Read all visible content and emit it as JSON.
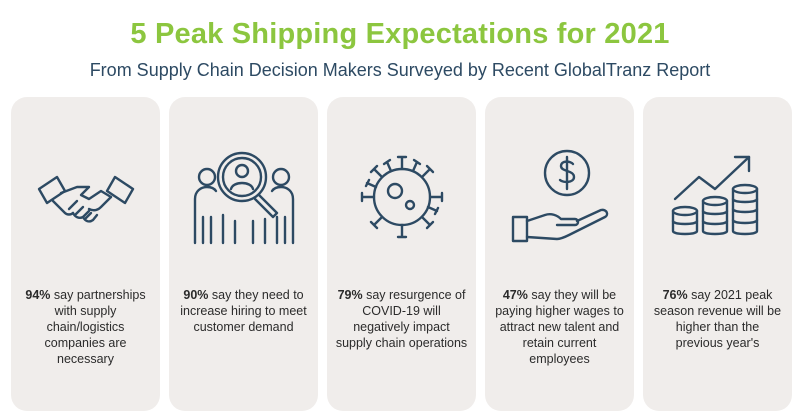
{
  "title": "5 Peak Shipping Expectations for 2021",
  "subtitle": "From Supply Chain Decision Makers Surveyed by Recent GlobalTranz Report",
  "colors": {
    "title": "#8cc63f",
    "subtitle": "#2d4a63",
    "card_bg": "#f0edeb",
    "icon_stroke": "#2d4a63"
  },
  "cards": [
    {
      "icon": "handshake-icon",
      "stat": "94%",
      "text": "say partnerships with supply chain/logistics companies are necessary"
    },
    {
      "icon": "hiring-search-icon",
      "stat": "90%",
      "text": "say they need to increase hiring to meet customer demand"
    },
    {
      "icon": "virus-icon",
      "stat": "79%",
      "text": "say resurgence of COVID-19 will negatively impact supply chain operations"
    },
    {
      "icon": "hand-dollar-icon",
      "stat": "47%",
      "text": "say they will be paying higher wages to attract new talent and retain current employees"
    },
    {
      "icon": "revenue-growth-icon",
      "stat": "76%",
      "text": "say 2021 peak season revenue will be higher than the previous year's"
    }
  ]
}
